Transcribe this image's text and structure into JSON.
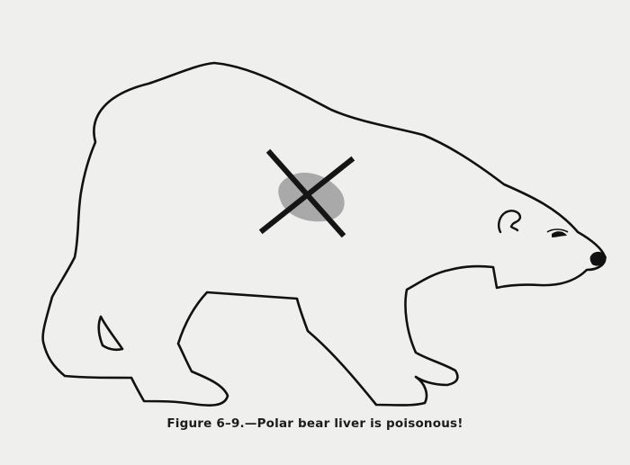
{
  "figure": {
    "caption": "Figure 6–9.—Polar bear liver is poisonous!"
  },
  "colors": {
    "background": "#efefed",
    "outline": "#111111",
    "liver_shade": "#a9a9a9",
    "mark": "#151515"
  },
  "icons": {
    "bear": "polar-bear-outline-icon",
    "liver": "liver-spot-icon",
    "mark": "x-mark-icon"
  }
}
